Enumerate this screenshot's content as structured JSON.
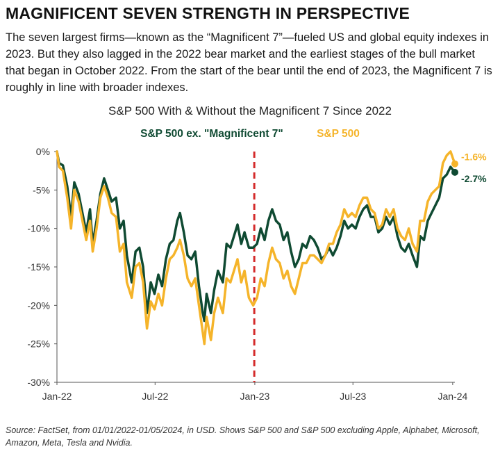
{
  "header": {
    "headline": "MAGNIFICENT SEVEN STRENGTH IN PERSPECTIVE",
    "intro": "The seven largest firms—known as the “Magnificent 7”—fueled US and global equity indexes in 2023. But they also lagged in the 2022 bear market and the earliest stages of the bull market that began in October 2022. From the start of the bear until the end of 2023, the Magnificent 7 is roughly in line with broader indexes."
  },
  "chart_data": {
    "type": "line",
    "title": "S&P 500 With & Without the Magnificent 7 Since 2022",
    "xlabel": "",
    "ylabel": "",
    "ylim": [
      -30,
      0
    ],
    "y_ticks": [
      "0%",
      "-5%",
      "-10%",
      "-15%",
      "-20%",
      "-25%",
      "-30%"
    ],
    "y_tick_values": [
      0,
      -5,
      -10,
      -15,
      -20,
      -25,
      -30
    ],
    "x_ticks": [
      "Jan-22",
      "Jul-22",
      "Jan-23",
      "Jul-23",
      "Jan-24"
    ],
    "x_tick_dates": [
      "2022-01-01",
      "2022-07-01",
      "2023-01-01",
      "2023-07-01",
      "2024-01-01"
    ],
    "xlim": [
      "2022-01-01",
      "2024-01-05"
    ],
    "grid": false,
    "legend_position": "top-center",
    "vertical_marker": {
      "date": "2022-12-31",
      "color": "#d42b2b",
      "style": "dashed"
    },
    "series": [
      {
        "name": "S&P 500 ex. \"Magnificent 7\"",
        "color": "#0f4a32",
        "end_label": "-2.7%",
        "points": [
          [
            "2022-01-01",
            0
          ],
          [
            "2022-01-05",
            -1.5
          ],
          [
            "2022-01-12",
            -1.8
          ],
          [
            "2022-01-20",
            -4.5
          ],
          [
            "2022-01-27",
            -8.5
          ],
          [
            "2022-02-02",
            -4.0
          ],
          [
            "2022-02-10",
            -5.5
          ],
          [
            "2022-02-17",
            -8.0
          ],
          [
            "2022-02-24",
            -10.5
          ],
          [
            "2022-03-03",
            -7.5
          ],
          [
            "2022-03-08",
            -12.0
          ],
          [
            "2022-03-15",
            -9.0
          ],
          [
            "2022-03-22",
            -5.5
          ],
          [
            "2022-03-29",
            -3.5
          ],
          [
            "2022-04-05",
            -5.0
          ],
          [
            "2022-04-12",
            -6.5
          ],
          [
            "2022-04-20",
            -6.0
          ],
          [
            "2022-04-27",
            -10.0
          ],
          [
            "2022-05-04",
            -9.0
          ],
          [
            "2022-05-10",
            -13.5
          ],
          [
            "2022-05-19",
            -17.0
          ],
          [
            "2022-05-26",
            -13.0
          ],
          [
            "2022-06-02",
            -12.5
          ],
          [
            "2022-06-09",
            -15.0
          ],
          [
            "2022-06-16",
            -21.0
          ],
          [
            "2022-06-23",
            -17.0
          ],
          [
            "2022-06-30",
            -18.5
          ],
          [
            "2022-07-07",
            -16.0
          ],
          [
            "2022-07-14",
            -17.5
          ],
          [
            "2022-07-21",
            -14.0
          ],
          [
            "2022-07-28",
            -12.0
          ],
          [
            "2022-08-04",
            -11.5
          ],
          [
            "2022-08-11",
            -9.0
          ],
          [
            "2022-08-16",
            -8.0
          ],
          [
            "2022-08-23",
            -10.5
          ],
          [
            "2022-08-30",
            -13.5
          ],
          [
            "2022-09-06",
            -14.0
          ],
          [
            "2022-09-13",
            -13.0
          ],
          [
            "2022-09-20",
            -17.5
          ],
          [
            "2022-09-27",
            -21.0
          ],
          [
            "2022-09-30",
            -22.0
          ],
          [
            "2022-10-04",
            -18.5
          ],
          [
            "2022-10-12",
            -21.0
          ],
          [
            "2022-10-18",
            -18.0
          ],
          [
            "2022-10-25",
            -15.5
          ],
          [
            "2022-11-03",
            -17.0
          ],
          [
            "2022-11-10",
            -12.0
          ],
          [
            "2022-11-17",
            -12.5
          ],
          [
            "2022-11-30",
            -9.5
          ],
          [
            "2022-12-07",
            -12.0
          ],
          [
            "2022-12-13",
            -10.5
          ],
          [
            "2022-12-21",
            -12.5
          ],
          [
            "2022-12-29",
            -12.5
          ],
          [
            "2023-01-05",
            -12.0
          ],
          [
            "2023-01-12",
            -10.0
          ],
          [
            "2023-01-19",
            -11.5
          ],
          [
            "2023-01-26",
            -9.0
          ],
          [
            "2023-02-02",
            -7.5
          ],
          [
            "2023-02-09",
            -9.0
          ],
          [
            "2023-02-16",
            -9.5
          ],
          [
            "2023-02-23",
            -11.5
          ],
          [
            "2023-03-02",
            -10.5
          ],
          [
            "2023-03-09",
            -13.0
          ],
          [
            "2023-03-16",
            -15.0
          ],
          [
            "2023-03-23",
            -14.0
          ],
          [
            "2023-03-30",
            -12.0
          ],
          [
            "2023-04-06",
            -12.5
          ],
          [
            "2023-04-13",
            -11.0
          ],
          [
            "2023-04-20",
            -11.5
          ],
          [
            "2023-04-27",
            -12.5
          ],
          [
            "2023-05-04",
            -14.0
          ],
          [
            "2023-05-11",
            -13.5
          ],
          [
            "2023-05-18",
            -12.5
          ],
          [
            "2023-05-25",
            -13.5
          ],
          [
            "2023-06-01",
            -12.5
          ],
          [
            "2023-06-08",
            -11.0
          ],
          [
            "2023-06-15",
            -9.0
          ],
          [
            "2023-06-22",
            -10.0
          ],
          [
            "2023-06-29",
            -9.5
          ],
          [
            "2023-07-06",
            -10.0
          ],
          [
            "2023-07-13",
            -8.5
          ],
          [
            "2023-07-20",
            -7.5
          ],
          [
            "2023-07-27",
            -7.0
          ],
          [
            "2023-08-03",
            -8.5
          ],
          [
            "2023-08-10",
            -8.5
          ],
          [
            "2023-08-17",
            -10.5
          ],
          [
            "2023-08-24",
            -10.0
          ],
          [
            "2023-08-31",
            -8.5
          ],
          [
            "2023-09-07",
            -9.5
          ],
          [
            "2023-09-14",
            -8.5
          ],
          [
            "2023-09-21",
            -11.0
          ],
          [
            "2023-09-28",
            -12.5
          ],
          [
            "2023-10-05",
            -13.0
          ],
          [
            "2023-10-12",
            -12.0
          ],
          [
            "2023-10-19",
            -13.5
          ],
          [
            "2023-10-27",
            -15.0
          ],
          [
            "2023-11-02",
            -11.0
          ],
          [
            "2023-11-09",
            -11.5
          ],
          [
            "2023-11-16",
            -9.0
          ],
          [
            "2023-11-23",
            -8.0
          ],
          [
            "2023-11-30",
            -7.0
          ],
          [
            "2023-12-07",
            -6.0
          ],
          [
            "2023-12-14",
            -3.5
          ],
          [
            "2023-12-21",
            -3.0
          ],
          [
            "2023-12-28",
            -2.0
          ],
          [
            "2024-01-05",
            -2.7
          ]
        ]
      },
      {
        "name": "S&P 500",
        "color": "#f5b42a",
        "end_label": "-1.6%",
        "points": [
          [
            "2022-01-01",
            0
          ],
          [
            "2022-01-05",
            -2.0
          ],
          [
            "2022-01-12",
            -2.5
          ],
          [
            "2022-01-20",
            -6.0
          ],
          [
            "2022-01-27",
            -10.0
          ],
          [
            "2022-02-02",
            -5.0
          ],
          [
            "2022-02-10",
            -6.5
          ],
          [
            "2022-02-17",
            -9.0
          ],
          [
            "2022-02-24",
            -11.5
          ],
          [
            "2022-03-03",
            -9.0
          ],
          [
            "2022-03-08",
            -13.0
          ],
          [
            "2022-03-15",
            -10.0
          ],
          [
            "2022-03-22",
            -6.0
          ],
          [
            "2022-03-29",
            -4.5
          ],
          [
            "2022-04-05",
            -6.0
          ],
          [
            "2022-04-12",
            -8.0
          ],
          [
            "2022-04-20",
            -8.5
          ],
          [
            "2022-04-27",
            -13.0
          ],
          [
            "2022-05-04",
            -12.0
          ],
          [
            "2022-05-10",
            -17.0
          ],
          [
            "2022-05-19",
            -19.0
          ],
          [
            "2022-05-26",
            -15.0
          ],
          [
            "2022-06-02",
            -14.5
          ],
          [
            "2022-06-09",
            -17.0
          ],
          [
            "2022-06-16",
            -23.0
          ],
          [
            "2022-06-23",
            -19.5
          ],
          [
            "2022-06-30",
            -20.5
          ],
          [
            "2022-07-07",
            -18.5
          ],
          [
            "2022-07-14",
            -20.0
          ],
          [
            "2022-07-21",
            -16.5
          ],
          [
            "2022-07-28",
            -14.0
          ],
          [
            "2022-08-04",
            -13.5
          ],
          [
            "2022-08-11",
            -12.5
          ],
          [
            "2022-08-16",
            -11.5
          ],
          [
            "2022-08-23",
            -13.5
          ],
          [
            "2022-08-30",
            -16.5
          ],
          [
            "2022-09-06",
            -17.5
          ],
          [
            "2022-09-13",
            -16.5
          ],
          [
            "2022-09-20",
            -20.0
          ],
          [
            "2022-09-27",
            -23.5
          ],
          [
            "2022-09-30",
            -25.0
          ],
          [
            "2022-10-04",
            -21.5
          ],
          [
            "2022-10-12",
            -24.5
          ],
          [
            "2022-10-18",
            -21.0
          ],
          [
            "2022-10-25",
            -19.0
          ],
          [
            "2022-11-03",
            -21.0
          ],
          [
            "2022-11-10",
            -16.5
          ],
          [
            "2022-11-17",
            -17.0
          ],
          [
            "2022-11-30",
            -14.0
          ],
          [
            "2022-12-07",
            -17.0
          ],
          [
            "2022-12-13",
            -15.5
          ],
          [
            "2022-12-21",
            -19.0
          ],
          [
            "2022-12-29",
            -20.0
          ],
          [
            "2023-01-05",
            -19.0
          ],
          [
            "2023-01-12",
            -16.5
          ],
          [
            "2023-01-19",
            -17.5
          ],
          [
            "2023-01-26",
            -14.5
          ],
          [
            "2023-02-02",
            -12.5
          ],
          [
            "2023-02-09",
            -14.0
          ],
          [
            "2023-02-16",
            -14.5
          ],
          [
            "2023-02-23",
            -16.5
          ],
          [
            "2023-03-02",
            -15.5
          ],
          [
            "2023-03-09",
            -17.5
          ],
          [
            "2023-03-16",
            -18.5
          ],
          [
            "2023-03-23",
            -16.5
          ],
          [
            "2023-03-30",
            -14.5
          ],
          [
            "2023-04-06",
            -14.5
          ],
          [
            "2023-04-13",
            -13.5
          ],
          [
            "2023-04-20",
            -13.5
          ],
          [
            "2023-04-27",
            -14.0
          ],
          [
            "2023-05-04",
            -14.5
          ],
          [
            "2023-05-11",
            -13.5
          ],
          [
            "2023-05-18",
            -12.0
          ],
          [
            "2023-05-25",
            -12.0
          ],
          [
            "2023-06-01",
            -10.5
          ],
          [
            "2023-06-08",
            -9.5
          ],
          [
            "2023-06-15",
            -7.5
          ],
          [
            "2023-06-22",
            -8.5
          ],
          [
            "2023-06-29",
            -8.0
          ],
          [
            "2023-07-06",
            -8.5
          ],
          [
            "2023-07-13",
            -7.0
          ],
          [
            "2023-07-20",
            -6.0
          ],
          [
            "2023-07-27",
            -6.0
          ],
          [
            "2023-08-03",
            -7.5
          ],
          [
            "2023-08-10",
            -8.0
          ],
          [
            "2023-08-17",
            -10.0
          ],
          [
            "2023-08-24",
            -9.5
          ],
          [
            "2023-08-31",
            -7.5
          ],
          [
            "2023-09-07",
            -8.5
          ],
          [
            "2023-09-14",
            -7.5
          ],
          [
            "2023-09-21",
            -10.0
          ],
          [
            "2023-09-28",
            -11.0
          ],
          [
            "2023-10-05",
            -11.5
          ],
          [
            "2023-10-12",
            -10.0
          ],
          [
            "2023-10-19",
            -12.0
          ],
          [
            "2023-10-27",
            -13.0
          ],
          [
            "2023-11-02",
            -9.0
          ],
          [
            "2023-11-09",
            -9.0
          ],
          [
            "2023-11-16",
            -6.5
          ],
          [
            "2023-11-23",
            -5.5
          ],
          [
            "2023-11-30",
            -5.0
          ],
          [
            "2023-12-07",
            -4.5
          ],
          [
            "2023-12-14",
            -1.5
          ],
          [
            "2023-12-21",
            -0.5
          ],
          [
            "2023-12-28",
            0.0
          ],
          [
            "2024-01-05",
            -1.6
          ]
        ]
      }
    ]
  },
  "source_note": "Source: FactSet, from 01/01/2022-01/05/2024, in USD. Shows S&P 500 and S&P 500 excluding Apple, Alphabet, Microsoft, Amazon, Meta, Tesla and Nvidia."
}
